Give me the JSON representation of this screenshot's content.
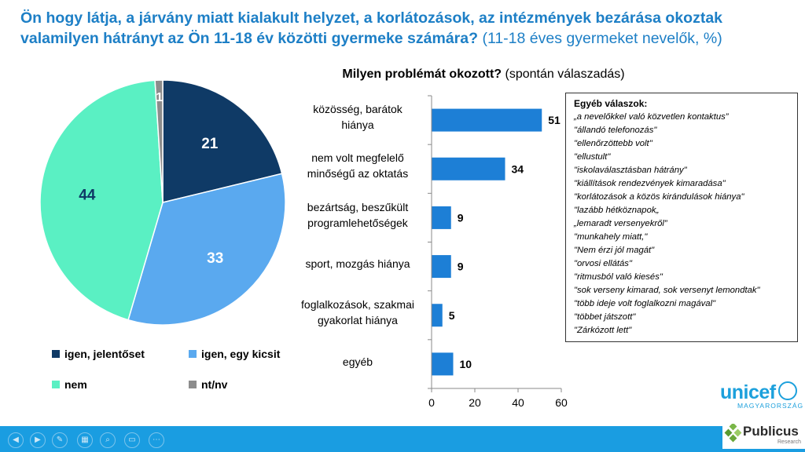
{
  "title": {
    "main": "Ön hogy látja, a járvány miatt kialakult helyzet, a korlátozások, az intézmények bezárása okoztak valamilyen hátrányt az Ön 11-18 év közötti gyermeke számára?",
    "sub": " (11-18 éves gyermeket nevelők, %)"
  },
  "bar_title": {
    "bold": "Milyen problémát okozott?",
    "normal": " (spontán válaszadás)"
  },
  "chart_data": [
    {
      "type": "pie",
      "slices": [
        {
          "label": "igen, jelentőset",
          "value": 21,
          "color": "#0f3a66"
        },
        {
          "label": "igen, egy kicsit",
          "value": 33,
          "color": "#5aa9ef"
        },
        {
          "label": "nem",
          "value": 44,
          "color": "#5af0c3"
        },
        {
          "label": "nt/nv",
          "value": 1,
          "color": "#8c8c8c"
        }
      ]
    },
    {
      "type": "bar",
      "orientation": "horizontal",
      "categories": [
        [
          "közösség, barátok",
          "hiánya"
        ],
        [
          "nem volt megfelelő",
          "minőségű az oktatás"
        ],
        [
          "bezártság, beszűkült",
          "programlehetőségek"
        ],
        [
          "sport, mozgás hiánya"
        ],
        [
          "foglalkozások, szakmai",
          "gyakorlat hiánya"
        ],
        [
          "egyéb"
        ]
      ],
      "values": [
        51,
        34,
        9,
        9,
        5,
        10
      ],
      "color": "#1d7fd6",
      "xlim": [
        0,
        60
      ],
      "xticks": [
        "0",
        "20",
        "40",
        "60"
      ]
    }
  ],
  "other_answers": {
    "header": "Egyéb válaszok:",
    "items": [
      "„a nevelőkkel való közvetlen kontaktus”",
      "\"állandó telefonozás\"",
      "\"ellenőrzöttebb volt\"",
      "\"ellustult\"",
      "\"iskolaválasztásban hátrány\"",
      "\"kiállítások rendezvények kimaradása\"",
      "\"korlátozások a közös kirándulások hiánya\"",
      "\"lazább hétköznapok„",
      "„lemaradt versenyekről”",
      "\"munkahely miatt,\"",
      "\"Nem érzi jól magát\"",
      "\"orvosi ellátás\"",
      "\"ritmusból való kiesés\"",
      "\"sok verseny kimarad, sok versenyt lemondtak\"",
      "\"több ideje volt foglalkozni magával\"",
      "\"többet játszott\"",
      "\"Zárkózott lett\""
    ]
  },
  "logos": {
    "unicef": "unicef",
    "unicef_country": "MAGYARORSZÁG",
    "publicus": "Publicus",
    "publicus_sub": "Research"
  },
  "footer_buttons": [
    "◀",
    "▶",
    "✎",
    "▦",
    "⌕",
    "▭",
    "⋯"
  ]
}
